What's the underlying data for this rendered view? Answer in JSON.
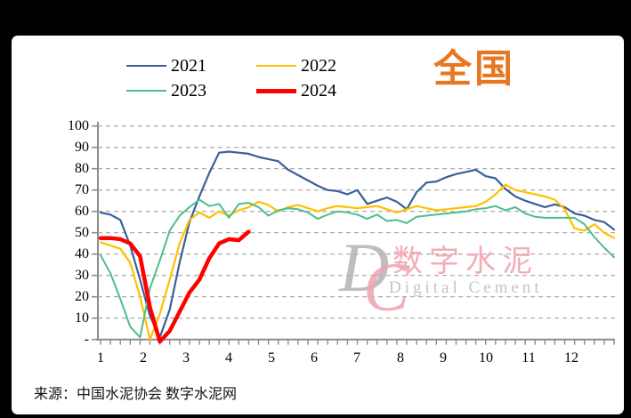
{
  "window": {
    "background": "#000000",
    "panel_background": "#ffffff"
  },
  "title": {
    "text": "全国",
    "color": "#e87722"
  },
  "legend": {
    "items": [
      {
        "label": "2021",
        "color": "#3a6096",
        "thick": false
      },
      {
        "label": "2022",
        "color": "#ffc000",
        "thick": false
      },
      {
        "label": "2023",
        "color": "#4fbd8c",
        "thick": false
      },
      {
        "label": "2024",
        "color": "#fe0000",
        "thick": true
      }
    ]
  },
  "watermark": {
    "monogram_d": "D",
    "monogram_c": "C",
    "cn_text": "数字水泥",
    "en_text": "Digital Cement"
  },
  "source_note": "来源：中国水泥协会  数字水泥网",
  "chart_data": {
    "type": "line",
    "title": "全国",
    "x_axis": {
      "unit": "month",
      "tick_labels": [
        "1",
        "2",
        "3",
        "4",
        "5",
        "6",
        "7",
        "8",
        "9",
        "10",
        "11",
        "12"
      ],
      "weekly_points": 53,
      "minor_ticks_per_week": 1
    },
    "y_axis": {
      "range": [
        0,
        100
      ],
      "tick_step": 10,
      "tick_labels": [
        "100",
        "90",
        "80",
        "70",
        "60",
        "50",
        "40",
        "30",
        "20",
        "10",
        "-"
      ],
      "gridlines": "dashed-gray"
    },
    "legend_position": "top",
    "series": [
      {
        "name": "2021",
        "color": "#3a6096",
        "width": 2.2,
        "values": [
          59.5,
          58.5,
          56,
          44,
          28,
          11,
          1,
          14,
          36,
          55,
          67,
          78,
          87.5,
          88,
          87.5,
          87,
          85.5,
          84.5,
          83.5,
          79.5,
          77,
          74.5,
          72,
          70,
          69.5,
          68,
          70,
          63.5,
          65,
          66.5,
          64.5,
          61,
          69,
          73.5,
          74,
          76,
          77.5,
          78.5,
          79.5,
          76.5,
          75.5,
          70.5,
          67,
          65,
          63.5,
          62,
          63.3,
          62,
          59,
          58,
          56,
          55,
          51.5
        ]
      },
      {
        "name": "2022",
        "color": "#ffc000",
        "width": 2.2,
        "values": [
          45.5,
          44,
          42.5,
          36,
          20,
          0,
          12,
          28,
          45,
          56,
          59.5,
          57,
          60,
          58,
          60.5,
          62,
          64.5,
          63,
          60,
          62,
          63,
          61.5,
          60,
          61.5,
          62.5,
          62,
          61.5,
          62,
          62.5,
          61,
          59.5,
          61,
          62.5,
          61.5,
          60.5,
          61,
          61.5,
          62,
          62.5,
          64.5,
          68,
          72.5,
          70,
          69,
          68,
          67,
          65.5,
          61,
          52,
          51,
          54,
          50,
          47.5
        ]
      },
      {
        "name": "2023",
        "color": "#4fbd8c",
        "width": 2,
        "values": [
          39.5,
          31,
          19,
          6,
          1,
          24,
          37,
          51,
          58,
          62,
          65.5,
          62.5,
          63.5,
          57,
          63.5,
          64,
          62,
          58,
          60.5,
          61.5,
          61,
          59.5,
          56.5,
          58.5,
          60,
          59.5,
          58.5,
          56.5,
          58.5,
          55.5,
          56,
          54.5,
          57.5,
          58,
          58.5,
          59,
          59.5,
          60,
          61,
          61.5,
          62.5,
          60.5,
          62,
          59,
          57.5,
          57,
          57,
          57,
          57,
          54,
          48,
          43,
          38.5
        ]
      },
      {
        "name": "2024",
        "color": "#fe0000",
        "width": 4.5,
        "values": [
          47.5,
          47.5,
          47,
          45,
          39,
          15,
          -1,
          4,
          13,
          22,
          28,
          38,
          45,
          47,
          46.5,
          50.5
        ]
      }
    ]
  }
}
